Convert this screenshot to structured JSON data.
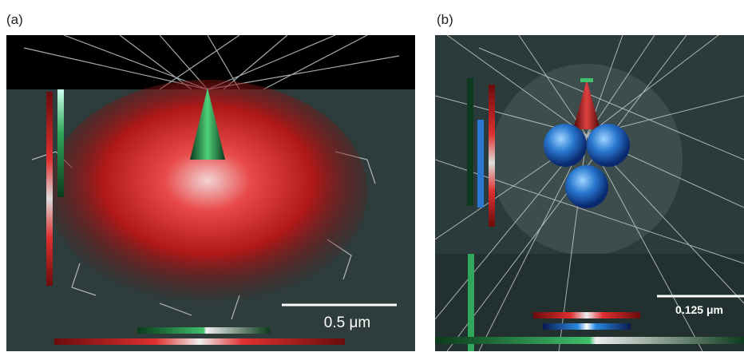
{
  "panels": [
    {
      "label": "(a)",
      "scale_bar": "0.5 μm"
    },
    {
      "label": "(b)",
      "scale_bar": "0.125 μm"
    }
  ]
}
